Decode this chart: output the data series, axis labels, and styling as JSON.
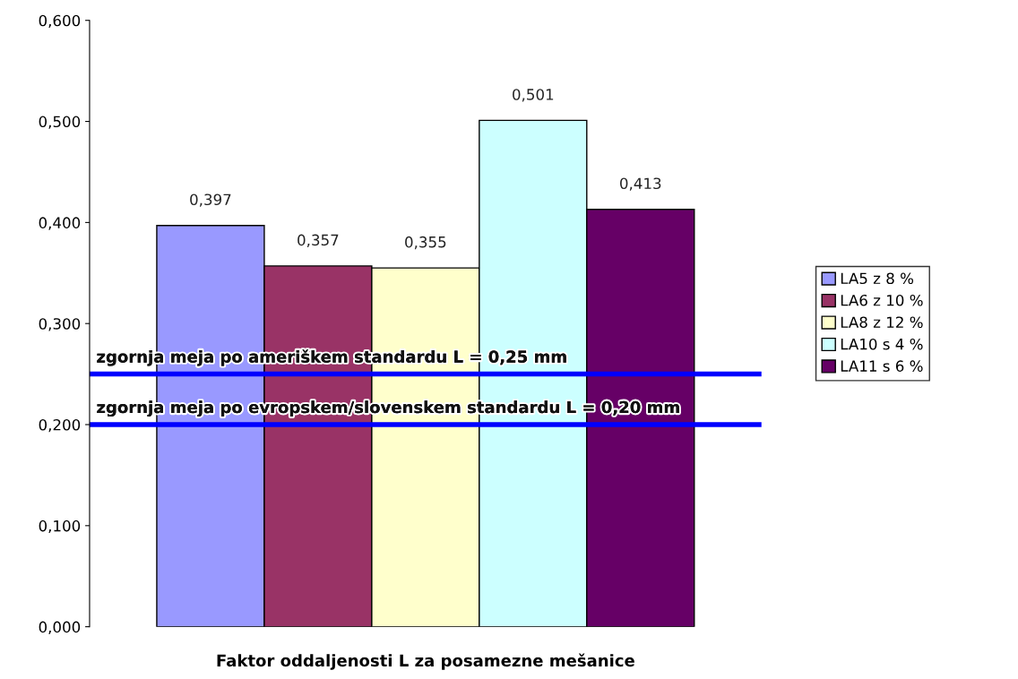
{
  "chart_data": {
    "type": "bar",
    "xlabel": "Faktor oddaljenosti L za posamezne mešanice",
    "categories": [
      null
    ],
    "series": [
      {
        "name": "LA5 z 8 %",
        "color": "#9999ff",
        "values": [
          0.397
        ],
        "value_labels": [
          "0,397"
        ]
      },
      {
        "name": "LA6 z 10 %",
        "color": "#993366",
        "values": [
          0.357
        ],
        "value_labels": [
          "0,357"
        ]
      },
      {
        "name": "LA8 z 12 %",
        "color": "#ffffcc",
        "values": [
          0.355
        ],
        "value_labels": [
          "0,355"
        ]
      },
      {
        "name": "LA10 s 4 %",
        "color": "#ccffff",
        "values": [
          0.501
        ],
        "value_labels": [
          "0,501"
        ]
      },
      {
        "name": "LA11 s 6 %",
        "color": "#660066",
        "values": [
          0.413
        ],
        "value_labels": [
          "0,413"
        ]
      }
    ],
    "ylim": [
      0,
      0.6
    ],
    "yticks": [
      {
        "value": 0,
        "label": "0,000"
      },
      {
        "value": 0.1,
        "label": "0,100"
      },
      {
        "value": 0.2,
        "label": "0,200"
      },
      {
        "value": 0.3,
        "label": "0,300"
      },
      {
        "value": 0.4,
        "label": "0,400"
      },
      {
        "value": 0.5,
        "label": "0,500"
      },
      {
        "value": 0.6,
        "label": "0,600"
      }
    ],
    "ref_lines": [
      {
        "axis": "y",
        "value": 0.25,
        "label": "zgornja meja po ameriškem standardu L = 0,25 mm",
        "color": "#0000ff"
      },
      {
        "axis": "y",
        "value": 0.2,
        "label": "zgornja meja po evropskem/slovenskem standardu L = 0,20 mm",
        "color": "#0000ff"
      }
    ],
    "grid": false,
    "legend": "right"
  }
}
